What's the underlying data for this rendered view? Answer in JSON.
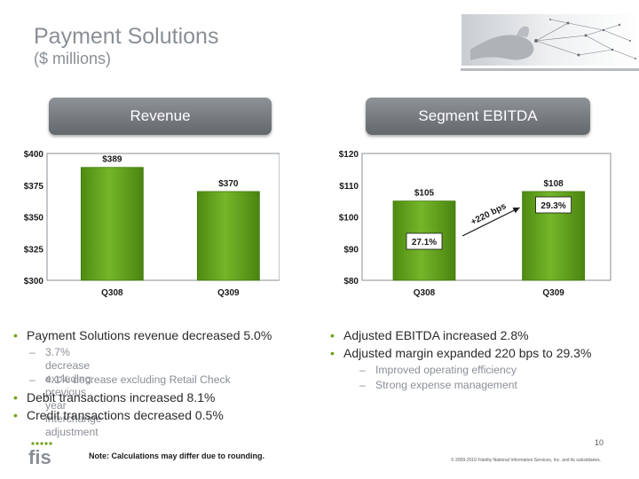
{
  "header": {
    "title": "Payment Solutions",
    "subtitle": "($ millions)"
  },
  "panels": {
    "revenue_label": "Revenue",
    "ebitda_label": "Segment EBITDA"
  },
  "chart_data": [
    {
      "type": "bar",
      "categories": [
        "Q308",
        "Q309"
      ],
      "values": [
        389,
        370
      ],
      "value_labels": [
        "$389",
        "$370"
      ],
      "yticks": [
        "$400",
        "$375",
        "$350",
        "$325",
        "$300"
      ],
      "ytick_values": [
        400,
        375,
        350,
        325,
        300
      ],
      "ylim": [
        300,
        400
      ],
      "title": "Revenue",
      "bar_color": "#5f9e1b"
    },
    {
      "type": "bar",
      "categories": [
        "Q308",
        "Q309"
      ],
      "values": [
        105,
        108
      ],
      "value_labels": [
        "$105",
        "$108"
      ],
      "margin_labels": [
        "27.1%",
        "29.3%"
      ],
      "annotation": "+220 bps",
      "yticks": [
        "$120",
        "$110",
        "$100",
        "$90",
        "$80"
      ],
      "ytick_values": [
        120,
        110,
        100,
        90,
        80
      ],
      "ylim": [
        80,
        120
      ],
      "title": "Segment EBITDA",
      "bar_color": "#5f9e1b"
    }
  ],
  "left_bullets": {
    "b1": "Payment Solutions revenue decreased 5.0%",
    "s1_line1": "3.7% decrease excluding previous year interchange",
    "s1_line2": "adjustment",
    "s2": "4.1% decrease excluding Retail Check",
    "b2": "Debit transactions increased 8.1%",
    "b3": "Credit transactions decreased 0.5%"
  },
  "right_bullets": {
    "b1": "Adjusted EBITDA increased 2.8%",
    "b2": "Adjusted margin expanded 220 bps to 29.3%",
    "s1": "Improved operating efficiency",
    "s2": "Strong expense management"
  },
  "footer": {
    "note": "Note: Calculations may differ due to rounding.",
    "page": "10",
    "copyright": "© 2009-2010 Fidelity National Information Services, Inc. and its subsidiaries.",
    "logo_text": "fis",
    "accent_color": "#6fa11a"
  }
}
